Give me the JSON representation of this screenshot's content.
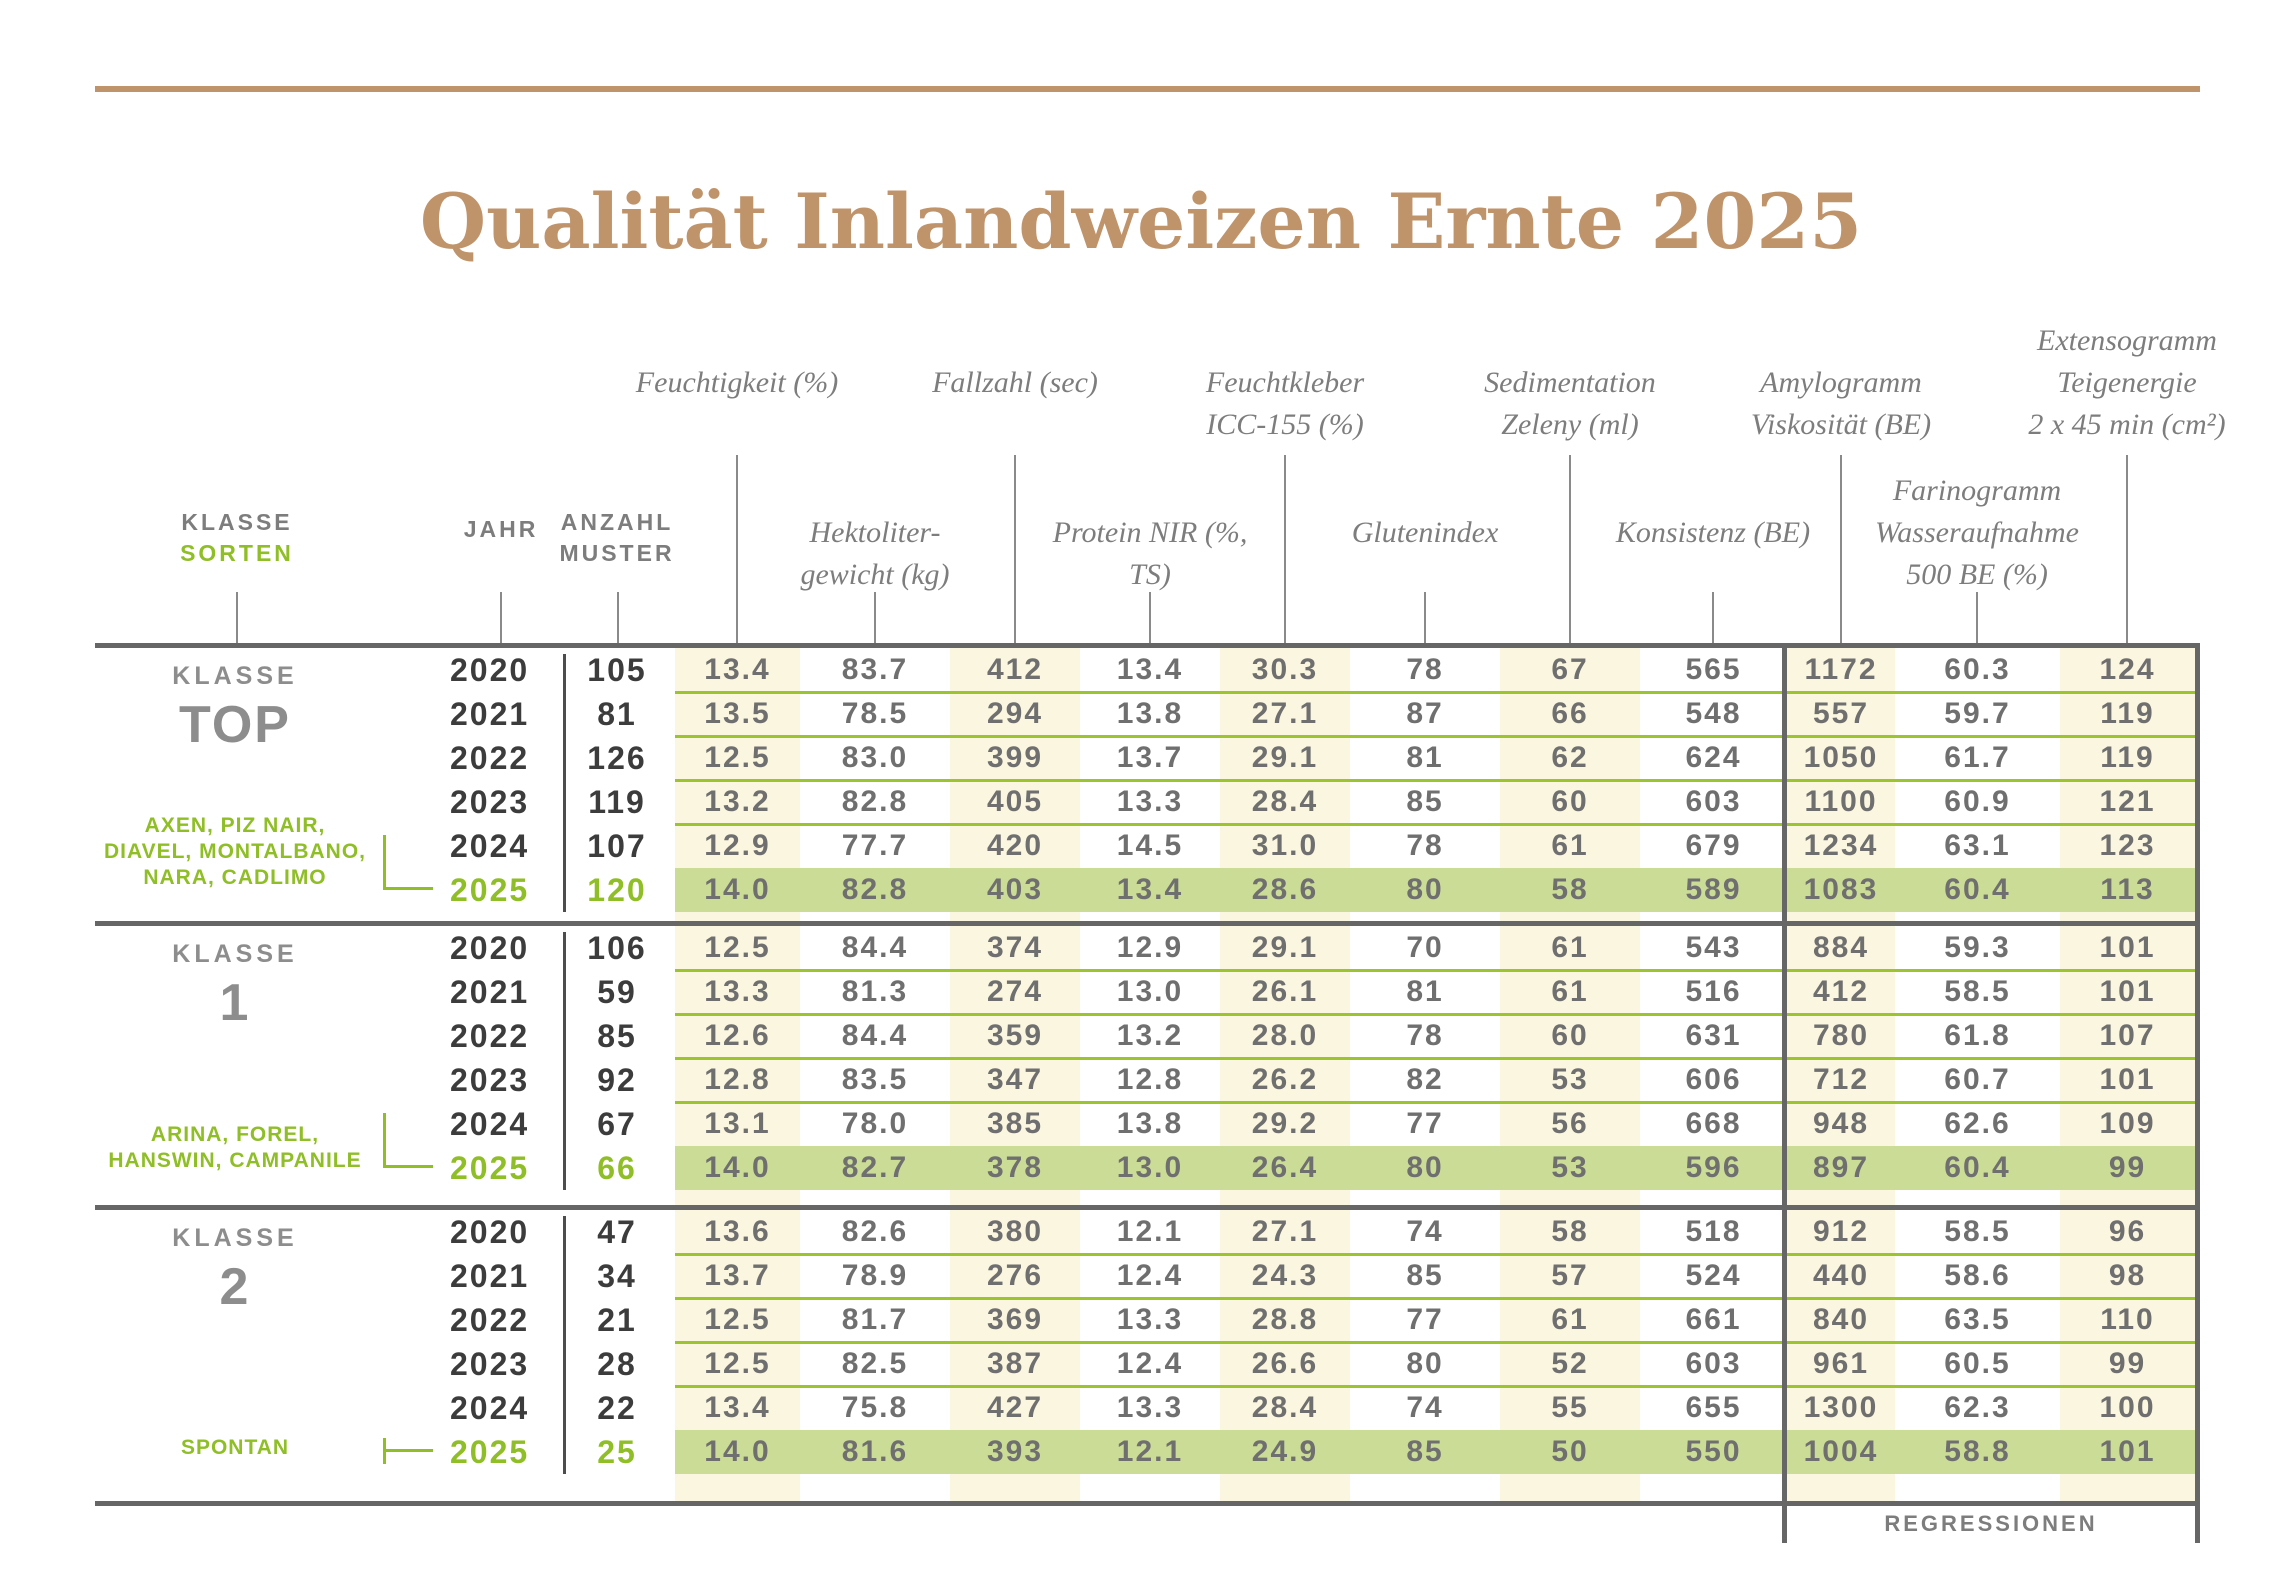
{
  "title": "Qualität Inlandweizen Ernte 2025",
  "left_headers": {
    "klasse": [
      "KLASSE",
      "SORTEN"
    ],
    "jahr": "JAHR",
    "anzahl": [
      "ANZAHL",
      "MUSTER"
    ]
  },
  "measure_headers": {
    "feuchtigkeit": [
      "Feuchtigkeit (%)"
    ],
    "hektolitergewicht": [
      "Hektoliter-",
      "gewicht (kg)"
    ],
    "fallzahl": [
      "Fallzahl (sec)"
    ],
    "protein_nir": [
      "Protein NIR (%,",
      "TS)"
    ],
    "feuchtkleber": [
      "Feuchtkleber",
      "ICC-155 (%)"
    ],
    "glutenindex": [
      "Glutenindex"
    ],
    "sedimentation": [
      "Sedimentation",
      "Zeleny (ml)"
    ],
    "konsistenz": [
      "Konsistenz (BE)"
    ],
    "amylogramm": [
      "Amylogramm",
      "Viskosität (BE)"
    ],
    "farinogramm": [
      "Farinogramm",
      "Wasseraufnahme",
      "500 BE (%)"
    ],
    "extensogramm": [
      "Extensogramm",
      "Teigenergie",
      "2 x 45 min (cm²)"
    ]
  },
  "footer": {
    "regressionen_label": "REGRESSIONEN"
  },
  "colors": {
    "tan": "#C0946B",
    "green": "#8FBE26",
    "grass": "#9CC42F",
    "band": "#CBDC97",
    "cream": "#FAF6DF",
    "dark": "#666666"
  },
  "blocks": [
    {
      "klasse_label": "KLASSE",
      "klasse_value": "TOP",
      "varieties": [
        "AXEN, PIZ NAIR,",
        "DIAVEL, MONTALBANO,",
        "NARA, CADLIMO"
      ],
      "rows": [
        {
          "jahr": "2020",
          "anzahl": "105",
          "highlight": false,
          "values": [
            "13.4",
            "83.7",
            "412",
            "13.4",
            "30.3",
            "78",
            "67",
            "565",
            "1172",
            "60.3",
            "124"
          ]
        },
        {
          "jahr": "2021",
          "anzahl": "81",
          "highlight": false,
          "values": [
            "13.5",
            "78.5",
            "294",
            "13.8",
            "27.1",
            "87",
            "66",
            "548",
            "557",
            "59.7",
            "119"
          ]
        },
        {
          "jahr": "2022",
          "anzahl": "126",
          "highlight": false,
          "values": [
            "12.5",
            "83.0",
            "399",
            "13.7",
            "29.1",
            "81",
            "62",
            "624",
            "1050",
            "61.7",
            "119"
          ]
        },
        {
          "jahr": "2023",
          "anzahl": "119",
          "highlight": false,
          "values": [
            "13.2",
            "82.8",
            "405",
            "13.3",
            "28.4",
            "85",
            "60",
            "603",
            "1100",
            "60.9",
            "121"
          ]
        },
        {
          "jahr": "2024",
          "anzahl": "107",
          "highlight": false,
          "values": [
            "12.9",
            "77.7",
            "420",
            "14.5",
            "31.0",
            "78",
            "61",
            "679",
            "1234",
            "63.1",
            "123"
          ]
        },
        {
          "jahr": "2025",
          "anzahl": "120",
          "highlight": true,
          "values": [
            "14.0",
            "82.8",
            "403",
            "13.4",
            "28.6",
            "80",
            "58",
            "589",
            "1083",
            "60.4",
            "113"
          ]
        }
      ]
    },
    {
      "klasse_label": "KLASSE",
      "klasse_value": "1",
      "varieties": [
        "ARINA, FOREL,",
        "HANSWIN, CAMPANILE"
      ],
      "rows": [
        {
          "jahr": "2020",
          "anzahl": "106",
          "highlight": false,
          "values": [
            "12.5",
            "84.4",
            "374",
            "12.9",
            "29.1",
            "70",
            "61",
            "543",
            "884",
            "59.3",
            "101"
          ]
        },
        {
          "jahr": "2021",
          "anzahl": "59",
          "highlight": false,
          "values": [
            "13.3",
            "81.3",
            "274",
            "13.0",
            "26.1",
            "81",
            "61",
            "516",
            "412",
            "58.5",
            "101"
          ]
        },
        {
          "jahr": "2022",
          "anzahl": "85",
          "highlight": false,
          "values": [
            "12.6",
            "84.4",
            "359",
            "13.2",
            "28.0",
            "78",
            "60",
            "631",
            "780",
            "61.8",
            "107"
          ]
        },
        {
          "jahr": "2023",
          "anzahl": "92",
          "highlight": false,
          "values": [
            "12.8",
            "83.5",
            "347",
            "12.8",
            "26.2",
            "82",
            "53",
            "606",
            "712",
            "60.7",
            "101"
          ]
        },
        {
          "jahr": "2024",
          "anzahl": "67",
          "highlight": false,
          "values": [
            "13.1",
            "78.0",
            "385",
            "13.8",
            "29.2",
            "77",
            "56",
            "668",
            "948",
            "62.6",
            "109"
          ]
        },
        {
          "jahr": "2025",
          "anzahl": "66",
          "highlight": true,
          "values": [
            "14.0",
            "82.7",
            "378",
            "13.0",
            "26.4",
            "80",
            "53",
            "596",
            "897",
            "60.4",
            "99"
          ]
        }
      ]
    },
    {
      "klasse_label": "KLASSE",
      "klasse_value": "2",
      "varieties": [
        "SPONTAN"
      ],
      "rows": [
        {
          "jahr": "2020",
          "anzahl": "47",
          "highlight": false,
          "values": [
            "13.6",
            "82.6",
            "380",
            "12.1",
            "27.1",
            "74",
            "58",
            "518",
            "912",
            "58.5",
            "96"
          ]
        },
        {
          "jahr": "2021",
          "anzahl": "34",
          "highlight": false,
          "values": [
            "13.7",
            "78.9",
            "276",
            "12.4",
            "24.3",
            "85",
            "57",
            "524",
            "440",
            "58.6",
            "98"
          ]
        },
        {
          "jahr": "2022",
          "anzahl": "21",
          "highlight": false,
          "values": [
            "12.5",
            "81.7",
            "369",
            "13.3",
            "28.8",
            "77",
            "61",
            "661",
            "840",
            "63.5",
            "110"
          ]
        },
        {
          "jahr": "2023",
          "anzahl": "28",
          "highlight": false,
          "values": [
            "12.5",
            "82.5",
            "387",
            "12.4",
            "26.6",
            "80",
            "52",
            "603",
            "961",
            "60.5",
            "99"
          ]
        },
        {
          "jahr": "2024",
          "anzahl": "22",
          "highlight": false,
          "values": [
            "13.4",
            "75.8",
            "427",
            "13.3",
            "28.4",
            "74",
            "55",
            "655",
            "1300",
            "62.3",
            "100"
          ]
        },
        {
          "jahr": "2025",
          "anzahl": "25",
          "highlight": true,
          "values": [
            "14.0",
            "81.6",
            "393",
            "12.1",
            "24.9",
            "85",
            "50",
            "550",
            "1004",
            "58.8",
            "101"
          ]
        }
      ]
    }
  ]
}
